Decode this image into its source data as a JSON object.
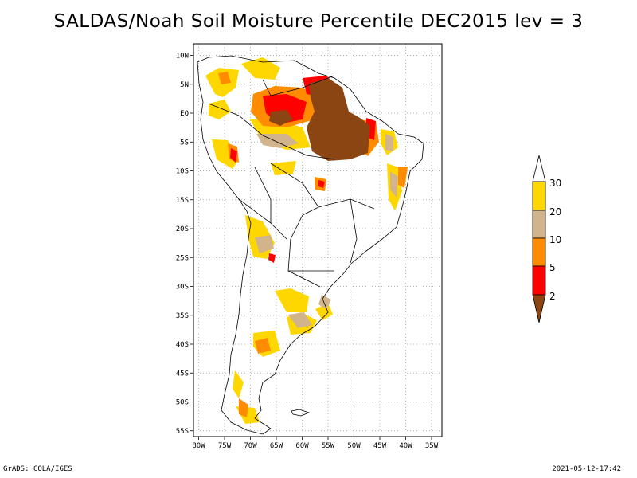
{
  "title": "SALDAS/Noah Soil Moisture Percentile DEC2015 lev = 3",
  "footer": {
    "left": "GrADS: COLA/IGES",
    "right": "2021-05-12-17:42"
  },
  "map": {
    "lat_labels": [
      "10N",
      "5N",
      "EQ",
      "5S",
      "10S",
      "15S",
      "20S",
      "25S",
      "30S",
      "35S",
      "40S",
      "45S",
      "50S",
      "55S"
    ],
    "lat_values": [
      10,
      5,
      0,
      -5,
      -10,
      -15,
      -20,
      -25,
      -30,
      -35,
      -40,
      -45,
      -50,
      -55
    ],
    "lon_labels": [
      "80W",
      "75W",
      "70W",
      "65W",
      "60W",
      "55W",
      "50W",
      "45W",
      "40W",
      "35W"
    ],
    "lon_values": [
      -80,
      -75,
      -70,
      -65,
      -60,
      -55,
      -50,
      -45,
      -40,
      -35
    ],
    "lon_range": [
      -81,
      -33
    ],
    "lat_range": [
      -56,
      12
    ],
    "grid": "dotted"
  },
  "colorbar": {
    "labels": [
      "2",
      "5",
      "10",
      "20",
      "30"
    ],
    "bins": [
      {
        "name": "below-2",
        "color": "#8b4513"
      },
      {
        "name": "2-5",
        "color": "#ff0000"
      },
      {
        "name": "5-10",
        "color": "#ff8c00"
      },
      {
        "name": "10-20",
        "color": "#d2b48c"
      },
      {
        "name": "20-30",
        "color": "#ffd700"
      },
      {
        "name": "above-30",
        "color": "#ffffff"
      }
    ]
  },
  "colors": {
    "brown": "#8b4513",
    "red": "#ff0000",
    "orange": "#ff8c00",
    "tan": "#d2b48c",
    "yellow": "#ffd700"
  }
}
